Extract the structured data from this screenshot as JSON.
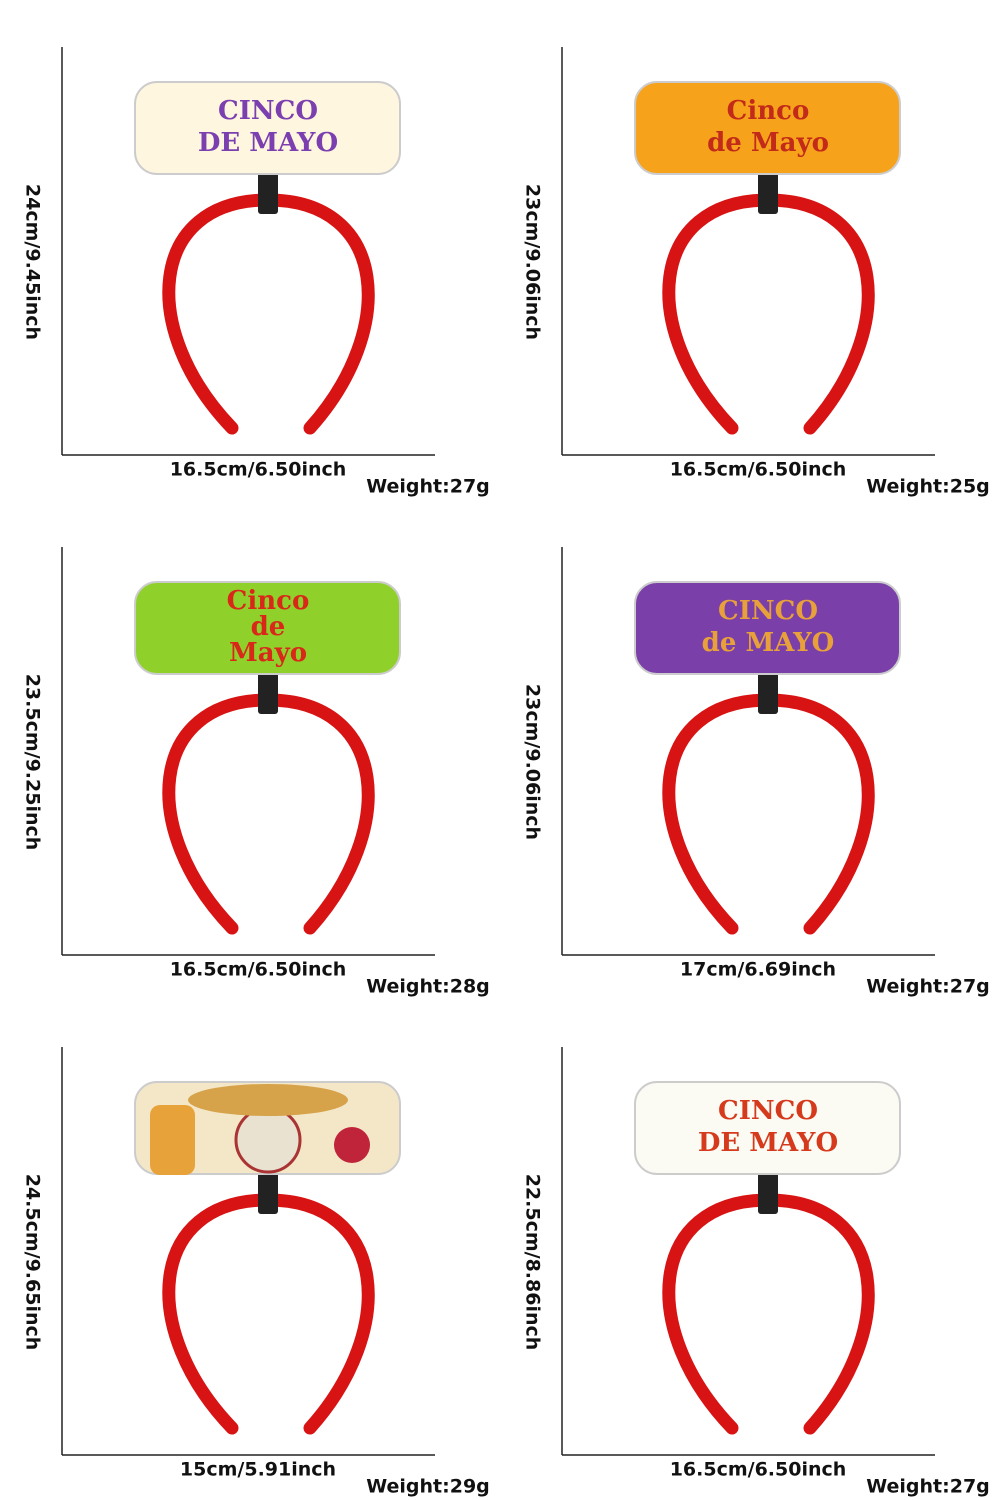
{
  "panels": [
    {
      "height_label": "24cm/9.45inch",
      "width_label": "16.5cm/6.50inch",
      "weight_label": "Weight:27g",
      "sign_text": [
        "CINCO",
        "DE MAYO"
      ]
    },
    {
      "height_label": "23cm/9.06inch",
      "width_label": "16.5cm/6.50inch",
      "weight_label": "Weight:25g",
      "sign_text": [
        "Cinco",
        "de Mayo"
      ]
    },
    {
      "height_label": "23.5cm/9.25inch",
      "width_label": "16.5cm/6.50inch",
      "weight_label": "Weight:28g",
      "sign_text": [
        "Cinco",
        "de",
        "Mayo"
      ]
    },
    {
      "height_label": "23cm/9.06inch",
      "width_label": "17cm/6.69inch",
      "weight_label": "Weight:27g",
      "sign_text": [
        "CINCO",
        "de MAYO"
      ]
    },
    {
      "height_label": "24.5cm/9.65inch",
      "width_label": "15cm/5.91inch",
      "weight_label": "Weight:29g"
    },
    {
      "height_label": "22.5cm/8.86inch",
      "width_label": "16.5cm/6.50inch",
      "weight_label": "Weight:27g",
      "sign_text": [
        "CINCO",
        "DE MAYO"
      ]
    }
  ]
}
